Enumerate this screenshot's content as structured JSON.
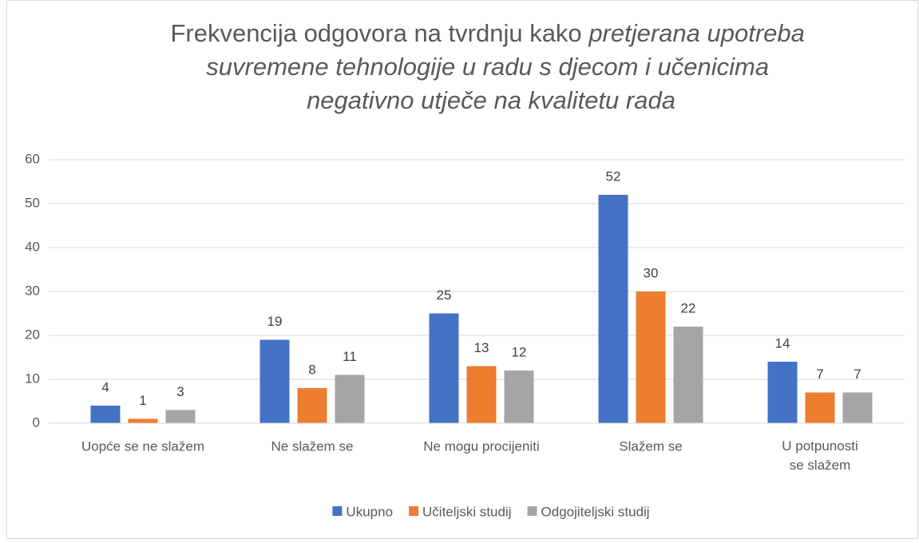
{
  "chart_data": {
    "type": "bar",
    "title": [
      {
        "text": "Frekvencija odgovora na tvrdnju kako",
        "italic": false
      },
      {
        "text": "pretjerana upotreba",
        "italic": true
      },
      {
        "text": "suvremene tehnologije u radu s djecom i učenicima",
        "italic": true
      },
      {
        "text": "negativno utječe na kvalitetu rada",
        "italic": true
      }
    ],
    "categories": [
      "Uopće se ne slažem",
      "Ne slažem se",
      "Ne mogu procijeniti",
      "Slažem se",
      "U potpunosti se slažem"
    ],
    "series": [
      {
        "name": "Ukupno",
        "color": "#4472c4",
        "values": [
          4,
          19,
          25,
          52,
          14
        ]
      },
      {
        "name": "Učiteljski studij",
        "color": "#ed7d31",
        "values": [
          1,
          8,
          13,
          30,
          7
        ]
      },
      {
        "name": "Odgojiteljski studij",
        "color": "#a5a5a5",
        "values": [
          3,
          11,
          12,
          22,
          7
        ]
      }
    ],
    "ylim": [
      0,
      60
    ],
    "yticks": [
      0,
      10,
      20,
      30,
      40,
      50,
      60
    ],
    "grid": true,
    "legend": "bottom",
    "data_labels": true
  }
}
